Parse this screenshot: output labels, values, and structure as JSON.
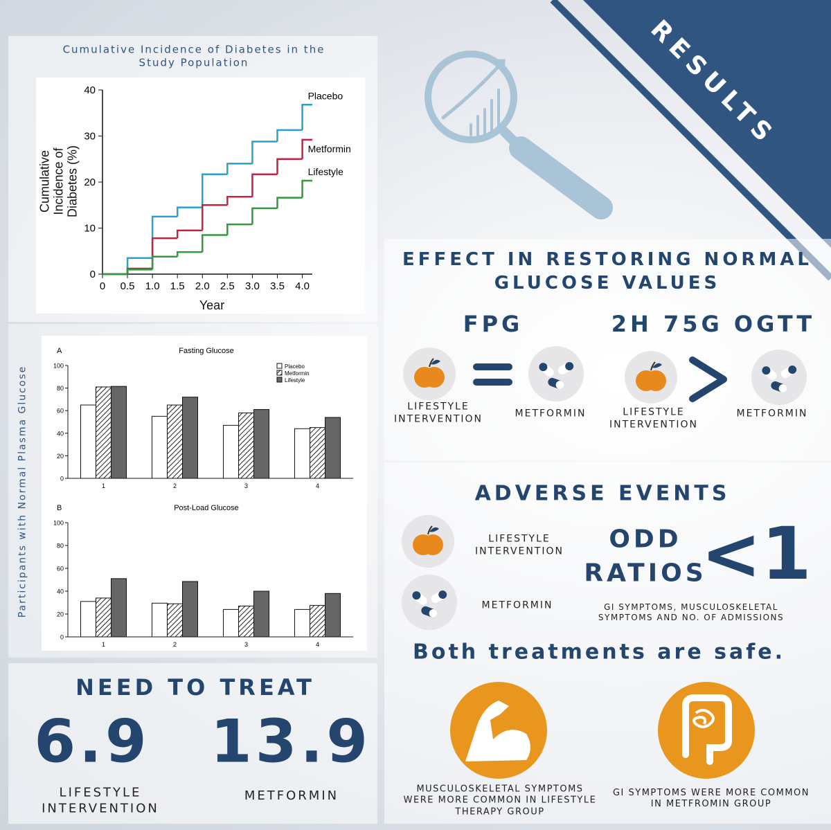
{
  "results_label": "RESULTS",
  "bar_figure_ylabel": "Participants with Normal Plasma Glucose",
  "chart_data": [
    {
      "type": "line",
      "step": true,
      "title": "Cumulative Incidence of Diabetes in the Study Population",
      "xlabel": "Year",
      "ylabel": "Cumulative Incidence of Diabetes (%)",
      "x": [
        0,
        0.5,
        1,
        1.5,
        2,
        2.5,
        3,
        3.5,
        4
      ],
      "xlim": [
        0,
        4.2
      ],
      "xticks": [
        0,
        0.5,
        {
          "value": 1,
          "label": "1.0"
        },
        1.5,
        {
          "value": 2,
          "label": "2.0"
        },
        2.5,
        {
          "value": 3,
          "label": "3.0"
        },
        3.5,
        {
          "value": 4,
          "label": "4.0"
        }
      ],
      "ylim": [
        0,
        40
      ],
      "yticks": [
        0,
        10,
        20,
        30,
        40
      ],
      "series": [
        {
          "name": "Placebo",
          "color": "#2a9fd0",
          "values": [
            0,
            3.5,
            12.5,
            14.5,
            21.7,
            24,
            28.8,
            31.3,
            36.8
          ]
        },
        {
          "name": "Metformin",
          "color": "#c8203f",
          "values": [
            0,
            1.2,
            7.8,
            9.5,
            15,
            16.8,
            21.7,
            25,
            29.2
          ]
        },
        {
          "name": "Lifestyle",
          "color": "#2e9a3a",
          "values": [
            0,
            1,
            3.8,
            4.8,
            8.5,
            10.8,
            14.3,
            16.6,
            20.3
          ]
        }
      ]
    },
    {
      "type": "bar",
      "panel": "A",
      "title": "Fasting Glucose",
      "legend": true,
      "categories": [
        "1",
        "2",
        "3",
        "4"
      ],
      "ylim": [
        0,
        100
      ],
      "yticks": [
        0,
        20,
        40,
        60,
        80,
        100
      ],
      "series": [
        {
          "name": "Placebo",
          "color": "#ffffff",
          "values": [
            65,
            55,
            47,
            44
          ]
        },
        {
          "name": "Metformin",
          "color": "#ffffff",
          "pattern": "hatch",
          "values": [
            81,
            65,
            58,
            45
          ]
        },
        {
          "name": "Lifestyle",
          "color": "#666666",
          "values": [
            81.5,
            72,
            61,
            54
          ]
        }
      ]
    },
    {
      "type": "bar",
      "panel": "B",
      "title": "Post-Load Glucose",
      "legend": false,
      "categories": [
        "1",
        "2",
        "3",
        "4"
      ],
      "ylim": [
        0,
        100
      ],
      "yticks": [
        0,
        20,
        40,
        60,
        80,
        100
      ],
      "series": [
        {
          "color": "#ffffff",
          "values": [
            31,
            29.5,
            24,
            24
          ]
        },
        {
          "color": "#ffffff",
          "pattern": "hatch",
          "values": [
            34,
            29,
            27,
            27.5
          ]
        },
        {
          "color": "#666666",
          "values": [
            51,
            48.5,
            40,
            38
          ]
        }
      ]
    }
  ],
  "effect": {
    "title": "EFFECT IN RESTORING NORMAL GLUCOSE VALUES",
    "fpg": {
      "heading": "FPG",
      "left": "LIFESTYLE INTERVENTION",
      "right": "METFORMIN"
    },
    "ogtt": {
      "heading": "2H 75G OGTT",
      "left": "LIFESTYLE INTERVENTION",
      "right": "METFORMIN"
    }
  },
  "adverse": {
    "title": "ADVERSE EVENTS",
    "lifestyle": "LIFESTYLE INTERVENTION",
    "metformin": "METFORMIN",
    "measure": "ODD RATIOS",
    "ratio": "<1",
    "note": "GI SYMPTOMS, MUSCULOSKELETAL SYMPTOMS AND NO. OF ADMISSIONS",
    "conclusion": "Both treatments are safe.",
    "musculoskeletal": "MUSCULOSKELETAL SYMPTOMS WERE MORE COMMON IN LIFESTYLE THERAPY GROUP",
    "gi": "GI SYMPTOMS WERE MORE COMMON IN METFROMIN GROUP"
  },
  "need_to_treat": {
    "title": "NEED TO TREAT",
    "items": [
      {
        "value": 6.9,
        "label": "LIFESTYLE INTERVENTION"
      },
      {
        "value": 13.9,
        "label": "METFORMIN"
      }
    ]
  }
}
